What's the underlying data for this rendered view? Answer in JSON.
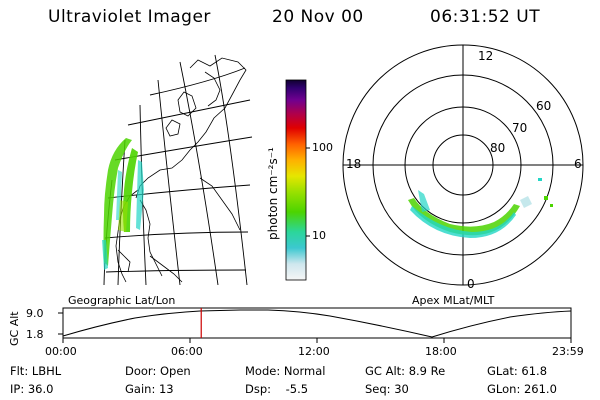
{
  "header": {
    "instrument": "Ultraviolet Imager",
    "date": "20 Nov 00",
    "time": "06:31:52 UT"
  },
  "colorbar": {
    "unit_label": "photon cm⁻²s⁻¹",
    "tick_labels": [
      "100",
      "10"
    ]
  },
  "polar_plot": {
    "mlt_labels": {
      "top": "12",
      "left": "18",
      "right": "6",
      "bottom": "0"
    },
    "lat_labels": [
      "60",
      "70",
      "80"
    ]
  },
  "timeline": {
    "left_title": "Geographic Lat/Lon",
    "right_title": "Apex MLat/MLT",
    "y_axis_label": "GC Alt",
    "y_ticks": [
      "9.0",
      "1.8"
    ],
    "x_ticks": [
      "00:00",
      "06:00",
      "12:00",
      "18:00",
      "23:59"
    ],
    "marker_time_hours": 6.53
  },
  "footer": {
    "row1": [
      "Flt: LBHL",
      "Door: Open",
      "Mode: Normal",
      "GC Alt: 8.9 Re",
      "GLat: 61.8"
    ],
    "row2": [
      "IP: 36.0",
      "Gain: 13",
      "Dsp:    -5.5",
      "Seq: 30",
      "GLon: 261.0"
    ]
  },
  "colors": {
    "timeline_marker": "#cc0000",
    "auroral_green": "#4cd400",
    "auroral_cyan": "#22d6c6"
  }
}
